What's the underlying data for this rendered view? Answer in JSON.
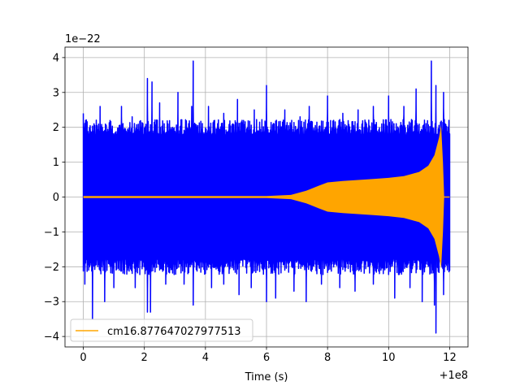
{
  "chart_data": {
    "type": "line",
    "title": "",
    "xlabel": "Time (s)",
    "ylabel": "",
    "x_offset_label": "+1e8",
    "y_scale_label": "1e−22",
    "xlim": [
      -0.6,
      12.6
    ],
    "ylim": [
      -4.3,
      4.3
    ],
    "x_ticks": [
      0,
      2,
      4,
      6,
      8,
      10,
      12
    ],
    "x_tick_labels": [
      "0",
      "2",
      "4",
      "6",
      "8",
      "10",
      "12"
    ],
    "y_ticks": [
      -4,
      -3,
      -2,
      -1,
      0,
      1,
      2,
      3,
      4
    ],
    "y_tick_labels": [
      "−4",
      "−3",
      "−2",
      "−1",
      "0",
      "1",
      "2",
      "3",
      "4"
    ],
    "grid": true,
    "legend_placement": "lower-left",
    "series": [
      {
        "name": "",
        "color": "#0000ff",
        "kind": "noise",
        "x_range": [
          0,
          12
        ],
        "typical_amplitude": 2.0,
        "peaks": [
          {
            "x": 0.0,
            "y": 2.4
          },
          {
            "x": 0.35,
            "y": 2.1
          },
          {
            "x": 0.55,
            "y": 2.6
          },
          {
            "x": 0.9,
            "y": 2.0
          },
          {
            "x": 1.25,
            "y": 2.6
          },
          {
            "x": 1.6,
            "y": 2.3
          },
          {
            "x": 2.1,
            "y": 3.4
          },
          {
            "x": 2.25,
            "y": 3.3
          },
          {
            "x": 2.5,
            "y": 2.7
          },
          {
            "x": 3.1,
            "y": 3.0
          },
          {
            "x": 3.55,
            "y": 2.6
          },
          {
            "x": 3.6,
            "y": 3.9
          },
          {
            "x": 4.1,
            "y": 2.6
          },
          {
            "x": 4.6,
            "y": 2.4
          },
          {
            "x": 5.05,
            "y": 2.8
          },
          {
            "x": 5.6,
            "y": 2.5
          },
          {
            "x": 6.0,
            "y": 3.2
          },
          {
            "x": 6.6,
            "y": 2.5
          },
          {
            "x": 7.1,
            "y": 2.3
          },
          {
            "x": 7.4,
            "y": 2.6
          },
          {
            "x": 8.0,
            "y": 2.9
          },
          {
            "x": 8.5,
            "y": 2.4
          },
          {
            "x": 9.0,
            "y": 2.5
          },
          {
            "x": 9.5,
            "y": 2.6
          },
          {
            "x": 10.0,
            "y": 2.9
          },
          {
            "x": 10.5,
            "y": 2.6
          },
          {
            "x": 10.9,
            "y": 3.1
          },
          {
            "x": 11.4,
            "y": 3.9
          },
          {
            "x": 11.55,
            "y": 3.2
          },
          {
            "x": 11.8,
            "y": 3.0
          }
        ],
        "troughs": [
          {
            "x": 0.05,
            "y": -2.5
          },
          {
            "x": 0.3,
            "y": -3.5
          },
          {
            "x": 0.7,
            "y": -3.0
          },
          {
            "x": 1.0,
            "y": -2.6
          },
          {
            "x": 1.7,
            "y": -2.6
          },
          {
            "x": 2.1,
            "y": -3.3
          },
          {
            "x": 2.2,
            "y": -3.3
          },
          {
            "x": 2.7,
            "y": -2.5
          },
          {
            "x": 3.3,
            "y": -2.5
          },
          {
            "x": 3.6,
            "y": -3.1
          },
          {
            "x": 4.2,
            "y": -2.6
          },
          {
            "x": 4.6,
            "y": -2.5
          },
          {
            "x": 5.1,
            "y": -2.8
          },
          {
            "x": 5.5,
            "y": -2.6
          },
          {
            "x": 6.0,
            "y": -3.0
          },
          {
            "x": 6.3,
            "y": -2.9
          },
          {
            "x": 6.9,
            "y": -2.7
          },
          {
            "x": 7.3,
            "y": -3.0
          },
          {
            "x": 7.8,
            "y": -2.5
          },
          {
            "x": 8.4,
            "y": -2.6
          },
          {
            "x": 8.9,
            "y": -2.7
          },
          {
            "x": 9.5,
            "y": -2.5
          },
          {
            "x": 10.2,
            "y": -2.9
          },
          {
            "x": 10.7,
            "y": -2.6
          },
          {
            "x": 11.1,
            "y": -3.0
          },
          {
            "x": 11.5,
            "y": -3.1
          },
          {
            "x": 11.55,
            "y": -3.9
          },
          {
            "x": 11.8,
            "y": -2.8
          }
        ]
      },
      {
        "name": "cm16.877647027977513",
        "color": "#ffa500",
        "kind": "chirp",
        "envelope": [
          {
            "x": 0.0,
            "y": 0.03
          },
          {
            "x": 6.0,
            "y": 0.03
          },
          {
            "x": 6.8,
            "y": 0.06
          },
          {
            "x": 7.3,
            "y": 0.18
          },
          {
            "x": 7.7,
            "y": 0.32
          },
          {
            "x": 8.0,
            "y": 0.42
          },
          {
            "x": 8.5,
            "y": 0.46
          },
          {
            "x": 9.0,
            "y": 0.49
          },
          {
            "x": 9.5,
            "y": 0.52
          },
          {
            "x": 10.0,
            "y": 0.55
          },
          {
            "x": 10.5,
            "y": 0.6
          },
          {
            "x": 11.0,
            "y": 0.72
          },
          {
            "x": 11.3,
            "y": 0.9
          },
          {
            "x": 11.5,
            "y": 1.2
          },
          {
            "x": 11.65,
            "y": 1.7
          },
          {
            "x": 11.72,
            "y": 2.05
          },
          {
            "x": 11.78,
            "y": 1.0
          },
          {
            "x": 11.82,
            "y": 0.0
          },
          {
            "x": 12.0,
            "y": 0.0
          }
        ]
      }
    ]
  }
}
